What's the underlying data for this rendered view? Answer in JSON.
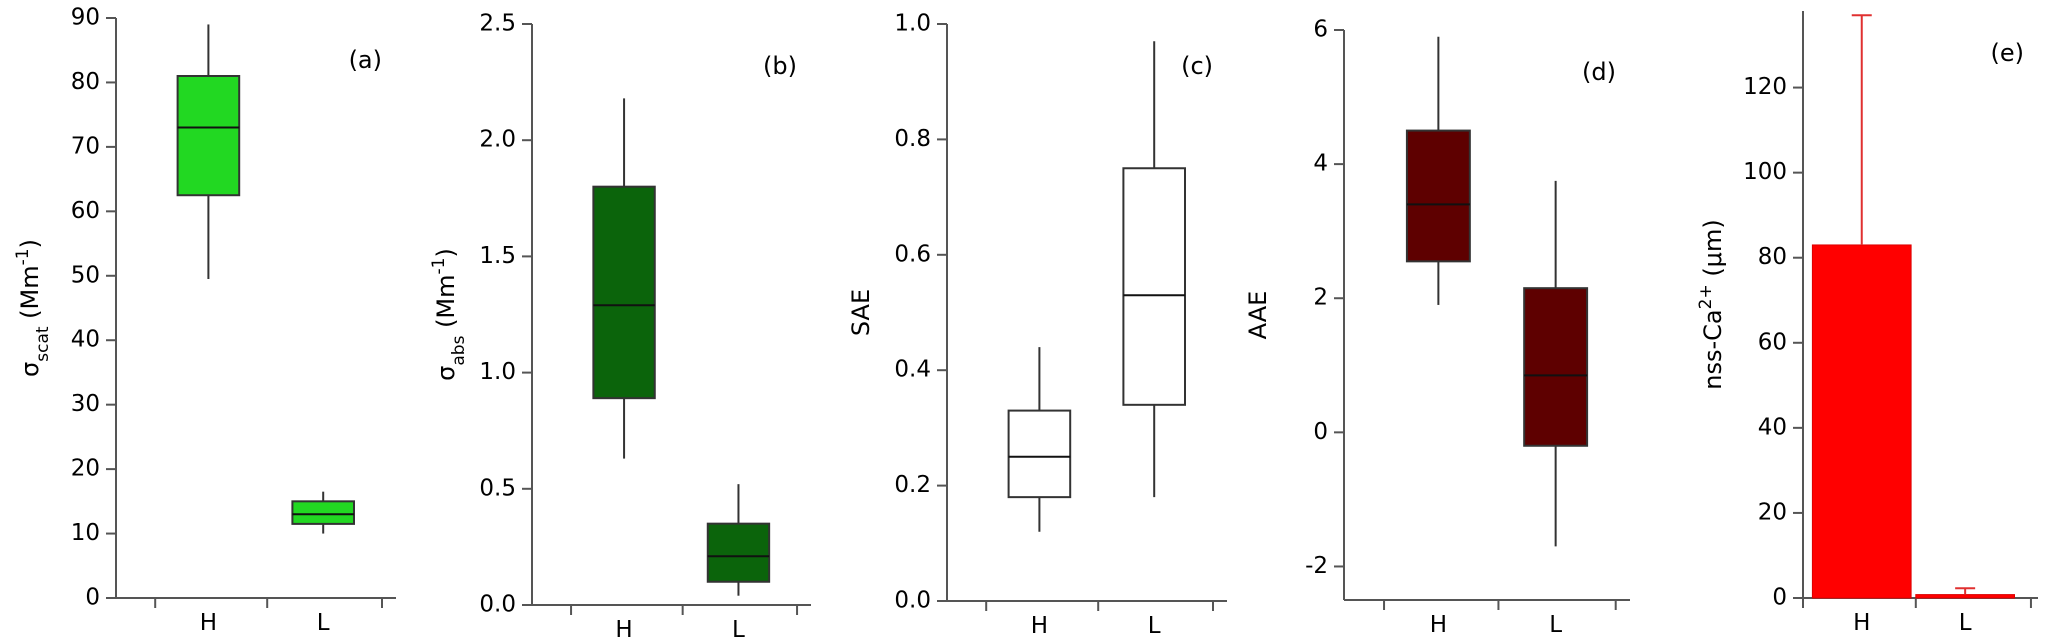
{
  "chart_data": [
    {
      "type": "box",
      "panel_label": "(a)",
      "color": "#22d822",
      "y_label": [
        {
          "text": "σ",
          "shift": "none"
        },
        {
          "text": "scat",
          "shift": "sub"
        },
        {
          "text": " (Mm",
          "shift": "none"
        },
        {
          "text": "-1",
          "shift": "super"
        },
        {
          "text": ")",
          "shift": "none"
        }
      ],
      "categories": [
        "H",
        "L"
      ],
      "boxes": [
        {
          "min": 49.5,
          "q1": 62.5,
          "median": 73,
          "q3": 81,
          "max": 89
        },
        {
          "min": 10,
          "q1": 11.5,
          "median": 13,
          "q3": 15,
          "max": 16.5
        }
      ],
      "ylim": [
        0,
        90
      ],
      "yticks": [
        0,
        10,
        20,
        30,
        40,
        50,
        60,
        70,
        80,
        90
      ]
    },
    {
      "type": "box",
      "panel_label": "(b)",
      "color": "#0b640b",
      "y_label": [
        {
          "text": "σ",
          "shift": "none"
        },
        {
          "text": "abs",
          "shift": "sub"
        },
        {
          "text": " (Mm",
          "shift": "none"
        },
        {
          "text": "-1",
          "shift": "super"
        },
        {
          "text": ")",
          "shift": "none"
        }
      ],
      "categories": [
        "H",
        "L"
      ],
      "boxes": [
        {
          "min": 0.63,
          "q1": 0.89,
          "median": 1.29,
          "q3": 1.8,
          "max": 2.18
        },
        {
          "min": 0.04,
          "q1": 0.1,
          "median": 0.21,
          "q3": 0.35,
          "max": 0.52
        }
      ],
      "ylim": [
        0,
        2.5
      ],
      "yticks": [
        {
          "value": 0,
          "label": "0.0"
        },
        {
          "value": 0.5,
          "label": "0.5"
        },
        {
          "value": 1,
          "label": "1.0"
        },
        {
          "value": 1.5,
          "label": "1.5"
        },
        {
          "value": 2,
          "label": "2.0"
        },
        {
          "value": 2.5,
          "label": "2.5"
        }
      ]
    },
    {
      "type": "box",
      "panel_label": "(c)",
      "color": "#ffffff",
      "y_label": [
        {
          "text": "SAE",
          "shift": "none"
        }
      ],
      "categories": [
        "H",
        "L"
      ],
      "boxes": [
        {
          "min": 0.12,
          "q1": 0.18,
          "median": 0.25,
          "q3": 0.33,
          "max": 0.44
        },
        {
          "min": 0.18,
          "q1": 0.34,
          "median": 0.53,
          "q3": 0.75,
          "max": 0.97
        }
      ],
      "ylim": [
        0,
        1
      ],
      "yticks": [
        {
          "value": 0,
          "label": "0.0"
        },
        {
          "value": 0.2,
          "label": "0.2"
        },
        {
          "value": 0.4,
          "label": "0.4"
        },
        {
          "value": 0.6,
          "label": "0.6"
        },
        {
          "value": 0.8,
          "label": "0.8"
        },
        {
          "value": 1,
          "label": "1.0"
        }
      ]
    },
    {
      "type": "box",
      "panel_label": "(d)",
      "color": "#5e0000",
      "y_label": [
        {
          "text": "AAE",
          "shift": "none"
        }
      ],
      "categories": [
        "H",
        "L"
      ],
      "boxes": [
        {
          "min": 1.9,
          "q1": 2.55,
          "median": 3.4,
          "q3": 4.5,
          "max": 5.9
        },
        {
          "min": -1.7,
          "q1": -0.2,
          "median": 0.85,
          "q3": 2.15,
          "max": 3.75
        }
      ],
      "ylim": [
        -2.5,
        6
      ],
      "yticks": [
        -2,
        0,
        2,
        4,
        6
      ]
    },
    {
      "type": "bar",
      "panel_label": "(e)",
      "color": "#ff0000",
      "y_label": [
        {
          "text": "nss-Ca",
          "shift": "none"
        },
        {
          "text": "2+",
          "shift": "super"
        },
        {
          "text": " (μm)",
          "shift": "none"
        }
      ],
      "categories": [
        "H",
        "L"
      ],
      "values": [
        83,
        0.8
      ],
      "errors": [
        54,
        1.5
      ],
      "ylim": [
        0,
        138
      ],
      "yticks": [
        0,
        20,
        40,
        60,
        80,
        100,
        120
      ]
    }
  ]
}
